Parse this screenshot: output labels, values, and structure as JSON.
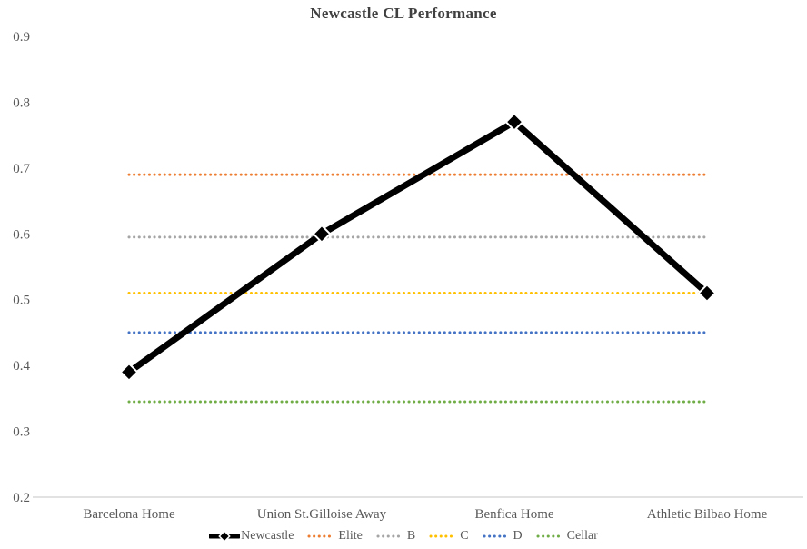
{
  "chart_data": {
    "type": "line",
    "title": "Newcastle CL Performance",
    "categories": [
      "Barcelona Home",
      "Union St.Gilloise Away",
      "Benfica Home",
      "Athletic Bilbao Home"
    ],
    "series": [
      {
        "name": "Newcastle",
        "values": [
          0.39,
          0.6,
          0.77,
          0.51
        ],
        "color": "#000000",
        "style": "solid-diamond"
      },
      {
        "name": "Elite",
        "values": [
          0.69,
          0.69,
          0.69,
          0.69
        ],
        "color": "#ED7D31",
        "style": "dotted"
      },
      {
        "name": "B",
        "values": [
          0.595,
          0.595,
          0.595,
          0.595
        ],
        "color": "#A5A5A5",
        "style": "dotted"
      },
      {
        "name": "C",
        "values": [
          0.51,
          0.51,
          0.51,
          0.51
        ],
        "color": "#FFC000",
        "style": "dotted"
      },
      {
        "name": "D",
        "values": [
          0.45,
          0.45,
          0.45,
          0.45
        ],
        "color": "#4472C4",
        "style": "dotted"
      },
      {
        "name": "Cellar",
        "values": [
          0.345,
          0.345,
          0.345,
          0.345
        ],
        "color": "#70AD47",
        "style": "dotted"
      }
    ],
    "ylim": [
      0.2,
      0.9
    ],
    "yticks": [
      "0.9",
      "0.8",
      "0.7",
      "0.6",
      "0.5",
      "0.4",
      "0.3",
      "0.2"
    ],
    "xlabel": "",
    "ylabel": "",
    "grid": false,
    "legend_position": "bottom",
    "axis_line_color": "#D9D9D9",
    "text_color": "#595959",
    "title_color": "#404040",
    "marker_outline_color": "#FFFFFF"
  }
}
